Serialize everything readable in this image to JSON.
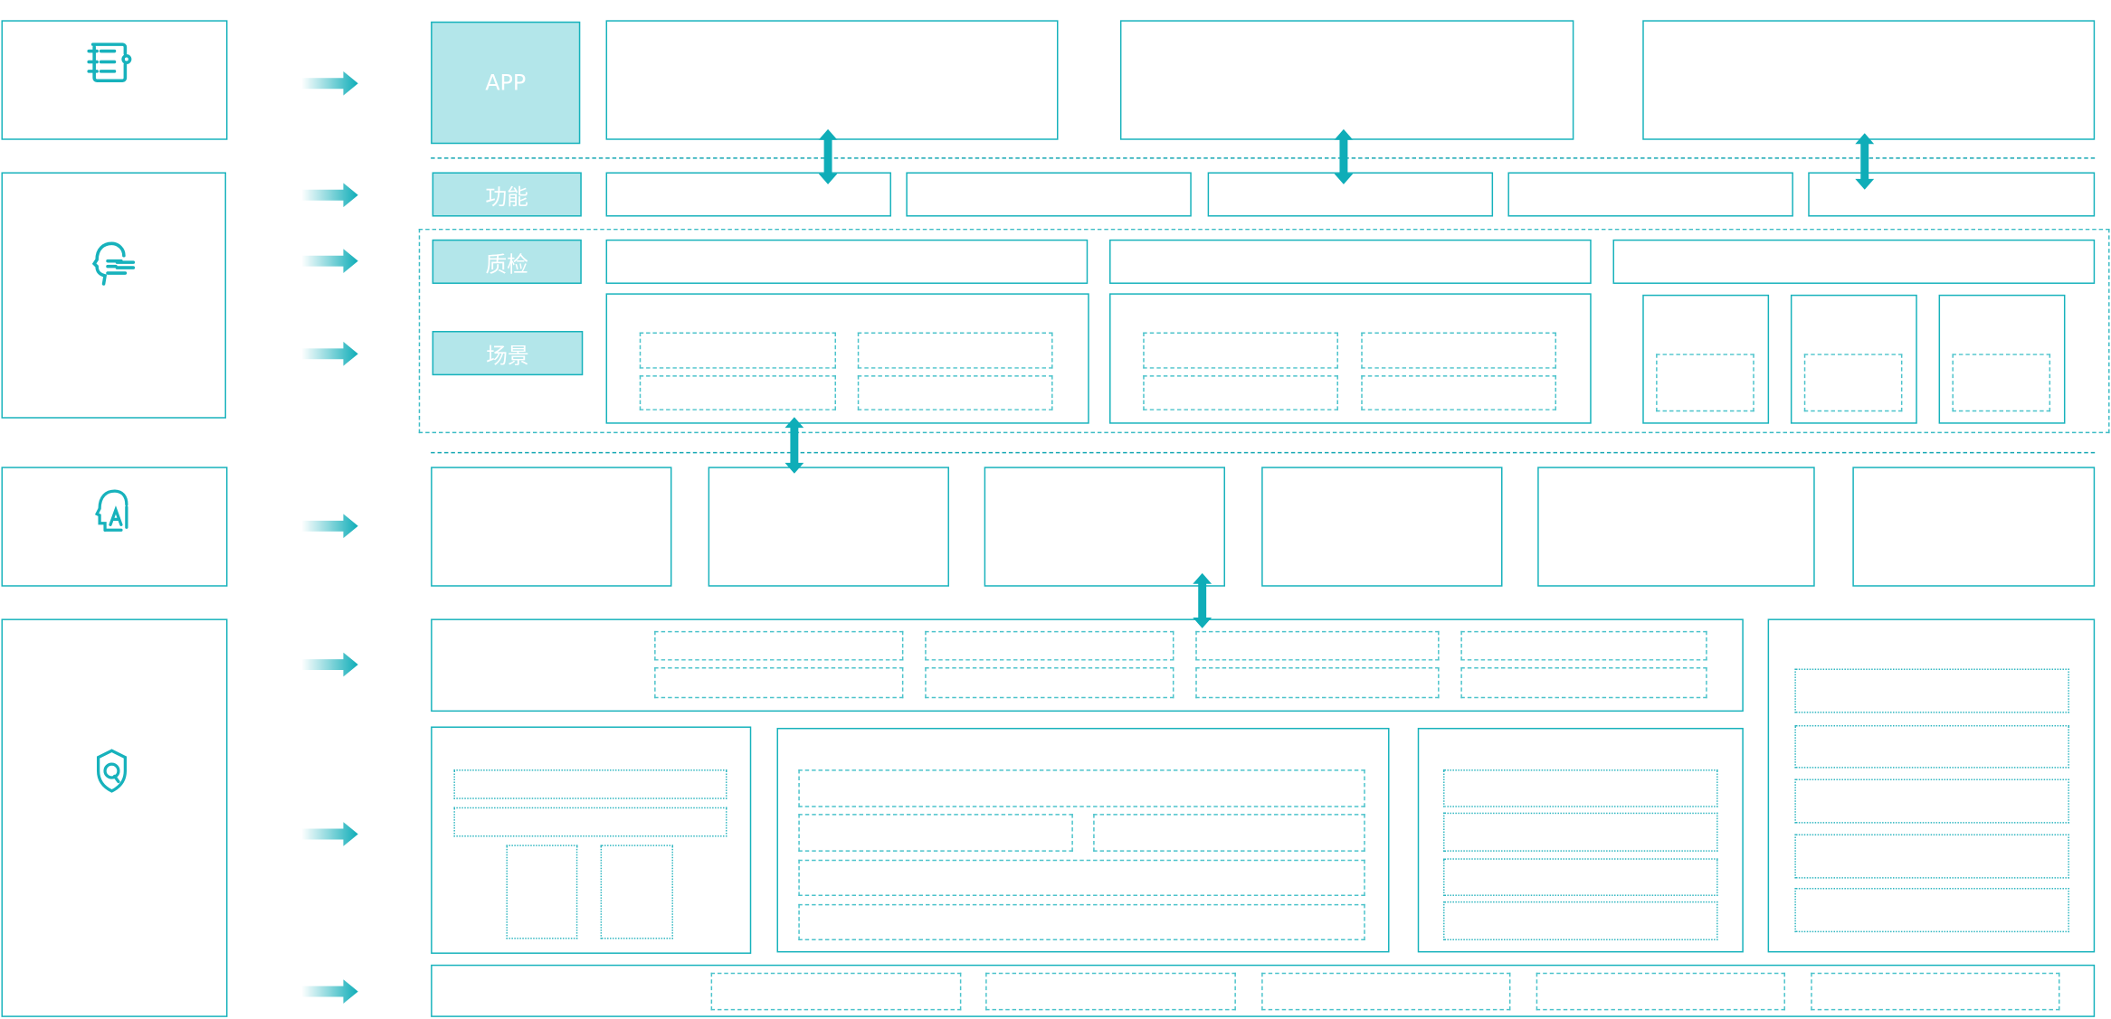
{
  "colors": {
    "stroke": "#17b2bc",
    "label_fill": "#b3e6ea",
    "label_text": "#ffffff",
    "arrow": "#0fadb8"
  },
  "labels": {
    "app": "APP",
    "function": "功能",
    "quality": "质检",
    "scene": "场景"
  },
  "icons": [
    "list-settings-icon",
    "head-chat-icon",
    "ai-head-icon",
    "shield-q-icon"
  ]
}
